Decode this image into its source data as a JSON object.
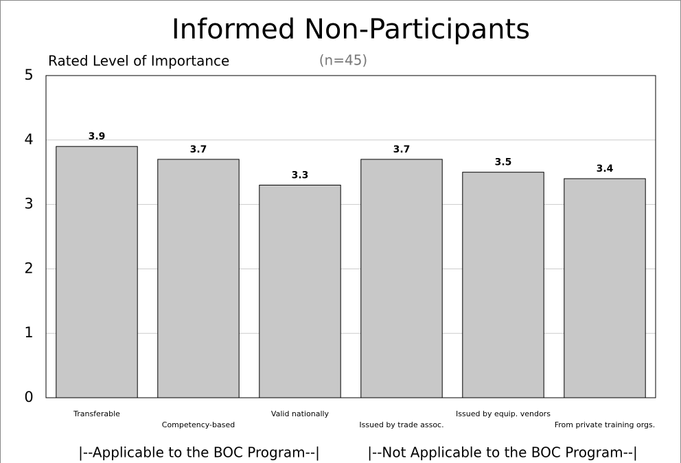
{
  "chart_data": {
    "type": "bar",
    "title": "Informed Non-Participants",
    "y_label": "Rated Level of Importance",
    "annotations": [
      "(n=45)",
      "|--Applicable to the BOC Program--|",
      "|--Not Applicable to the BOC Program--|"
    ],
    "categories": [
      "Transferable",
      "Competency-based",
      "Valid nationally",
      "Issued by trade assoc.",
      "Issued by equip. vendors",
      "From private training orgs."
    ],
    "values": [
      3.9,
      3.7,
      3.3,
      3.7,
      3.5,
      3.4
    ],
    "color": "#c8c8c8",
    "ylim": [
      0,
      5
    ],
    "yticks": [
      0,
      1,
      2,
      3,
      4,
      5
    ],
    "grid": true
  }
}
